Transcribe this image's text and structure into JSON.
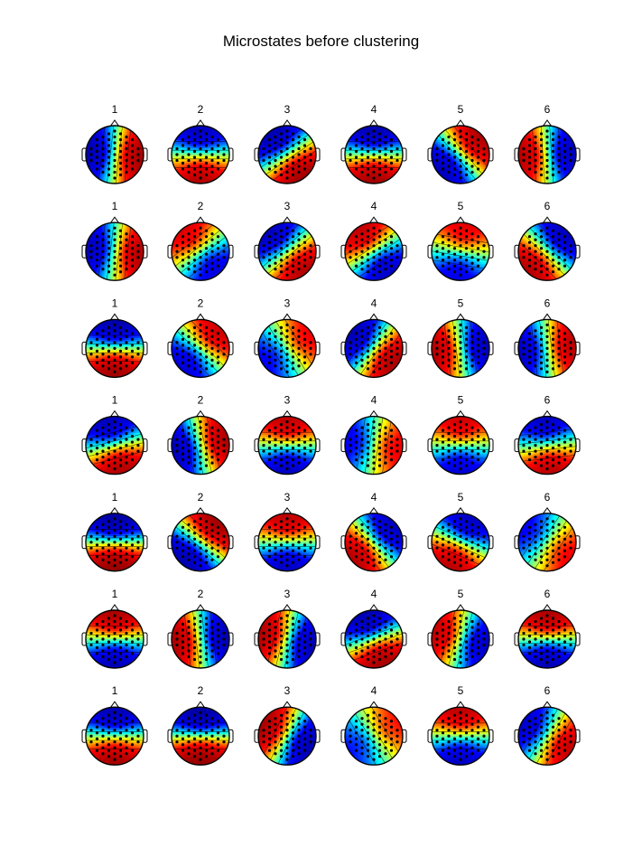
{
  "figure": {
    "title": "Microstates before clustering"
  },
  "colormap": {
    "name": "jet",
    "stops": [
      "#00008f",
      "#0000ff",
      "#00ffff",
      "#ffff00",
      "#ff0000",
      "#800000"
    ]
  },
  "rows": [
    {
      "labels": [
        "1",
        "2",
        "3",
        "4",
        "5",
        "6"
      ],
      "maps": [
        {
          "ax": 0.85,
          "ay": 0.1,
          "amp": 0.9
        },
        {
          "ax": 0.0,
          "ay": 0.8,
          "amp": 0.85
        },
        {
          "ax": 0.55,
          "ay": 0.8,
          "amp": 0.8
        },
        {
          "ax": 0.0,
          "ay": 0.9,
          "amp": 0.85
        },
        {
          "ax": 0.6,
          "ay": -0.5,
          "amp": 0.9
        },
        {
          "ax": -0.75,
          "ay": 0.05,
          "amp": 0.9
        }
      ]
    },
    {
      "labels": [
        "1",
        "2",
        "3",
        "4",
        "5",
        "6"
      ],
      "maps": [
        {
          "ax": 0.8,
          "ay": 0.1,
          "amp": 0.85
        },
        {
          "ax": -0.4,
          "ay": -0.5,
          "amp": 0.8
        },
        {
          "ax": 0.6,
          "ay": 0.7,
          "amp": 0.75
        },
        {
          "ax": -0.4,
          "ay": -0.6,
          "amp": 0.85
        },
        {
          "ax": 0.1,
          "ay": -0.6,
          "amp": 0.8
        },
        {
          "ax": -0.6,
          "ay": 0.6,
          "amp": 0.8
        }
      ]
    },
    {
      "labels": [
        "1",
        "2",
        "3",
        "4",
        "5",
        "6"
      ],
      "maps": [
        {
          "ax": 0.0,
          "ay": 0.9,
          "amp": 0.9
        },
        {
          "ax": 0.5,
          "ay": -0.5,
          "amp": 0.8
        },
        {
          "ax": 0.5,
          "ay": -0.3,
          "amp": 0.75
        },
        {
          "ax": 0.7,
          "ay": 0.5,
          "amp": 0.85
        },
        {
          "ax": -0.8,
          "ay": 0.1,
          "amp": 0.85
        },
        {
          "ax": 0.85,
          "ay": -0.1,
          "amp": 0.75
        }
      ]
    },
    {
      "labels": [
        "1",
        "2",
        "3",
        "4",
        "5",
        "6"
      ],
      "maps": [
        {
          "ax": 0.2,
          "ay": 0.8,
          "amp": 0.85
        },
        {
          "ax": 0.8,
          "ay": -0.2,
          "amp": 0.85
        },
        {
          "ax": 0.0,
          "ay": -0.8,
          "amp": 0.8
        },
        {
          "ax": 0.6,
          "ay": 0.1,
          "amp": 0.75
        },
        {
          "ax": 0.0,
          "ay": -0.7,
          "amp": 0.8
        },
        {
          "ax": 0.1,
          "ay": 0.85,
          "amp": 0.75
        }
      ]
    },
    {
      "labels": [
        "1",
        "2",
        "3",
        "4",
        "5",
        "6"
      ],
      "maps": [
        {
          "ax": 0.0,
          "ay": 0.95,
          "amp": 0.95
        },
        {
          "ax": 0.6,
          "ay": -0.7,
          "amp": 0.85
        },
        {
          "ax": 0.0,
          "ay": -0.8,
          "amp": 0.8
        },
        {
          "ax": -0.6,
          "ay": 0.5,
          "amp": 0.85
        },
        {
          "ax": -0.3,
          "ay": 0.7,
          "amp": 0.85
        },
        {
          "ax": 0.6,
          "ay": 0.4,
          "amp": 0.6
        }
      ]
    },
    {
      "labels": [
        "1",
        "2",
        "3",
        "4",
        "5",
        "6"
      ],
      "maps": [
        {
          "ax": 0.0,
          "ay": -0.85,
          "amp": 0.85
        },
        {
          "ax": -0.85,
          "ay": 0.1,
          "amp": 0.85
        },
        {
          "ax": -0.8,
          "ay": -0.2,
          "amp": 0.85
        },
        {
          "ax": 0.3,
          "ay": 0.85,
          "amp": 0.85
        },
        {
          "ax": -0.7,
          "ay": -0.2,
          "amp": 0.85
        },
        {
          "ax": 0.0,
          "ay": -0.8,
          "amp": 0.9
        }
      ]
    },
    {
      "labels": [
        "1",
        "2",
        "3",
        "4",
        "5",
        "6"
      ],
      "maps": [
        {
          "ax": 0.0,
          "ay": 0.9,
          "amp": 0.85
        },
        {
          "ax": 0.0,
          "ay": 0.95,
          "amp": 0.95
        },
        {
          "ax": -0.8,
          "ay": -0.4,
          "amp": 0.85
        },
        {
          "ax": 0.5,
          "ay": -0.3,
          "amp": 0.65
        },
        {
          "ax": 0.0,
          "ay": -0.8,
          "amp": 0.8
        },
        {
          "ax": 0.7,
          "ay": 0.4,
          "amp": 0.75
        }
      ]
    }
  ]
}
